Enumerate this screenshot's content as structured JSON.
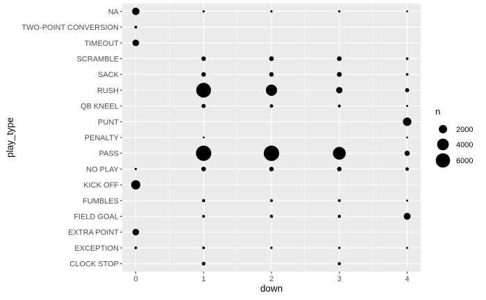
{
  "chart_data": {
    "type": "scatter",
    "xlabel": "down",
    "ylabel": "play_type",
    "x_ticks": [
      "0",
      "1",
      "2",
      "3",
      "4"
    ],
    "xlim": [
      -0.2,
      4.2
    ],
    "categories": [
      "CLOCK STOP",
      "EXCEPTION",
      "EXTRA POINT",
      "FIELD GOAL",
      "FUMBLES",
      "KICK OFF",
      "NO PLAY",
      "PASS",
      "PENALTY",
      "PUNT",
      "QB KNEEL",
      "RUSH",
      "SACK",
      "SCRAMBLE",
      "TIMEOUT",
      "TWO-POINT CONVERSION",
      "NA"
    ],
    "size_variable": "n",
    "legend": {
      "title": "n",
      "position": "right",
      "entries": [
        {
          "label": "2000",
          "value": 2000
        },
        {
          "label": "4000",
          "value": 4000
        },
        {
          "label": "6000",
          "value": 6000
        }
      ]
    },
    "size_range_max": 7500,
    "points": [
      {
        "play_type": "NA",
        "down": 0,
        "n": 1600
      },
      {
        "play_type": "NA",
        "down": 1,
        "n": 150
      },
      {
        "play_type": "NA",
        "down": 2,
        "n": 150
      },
      {
        "play_type": "NA",
        "down": 3,
        "n": 150
      },
      {
        "play_type": "NA",
        "down": 4,
        "n": 100
      },
      {
        "play_type": "TWO-POINT CONVERSION",
        "down": 0,
        "n": 250
      },
      {
        "play_type": "TIMEOUT",
        "down": 0,
        "n": 1300
      },
      {
        "play_type": "SCRAMBLE",
        "down": 1,
        "n": 600
      },
      {
        "play_type": "SCRAMBLE",
        "down": 2,
        "n": 650
      },
      {
        "play_type": "SCRAMBLE",
        "down": 3,
        "n": 650
      },
      {
        "play_type": "SCRAMBLE",
        "down": 4,
        "n": 200
      },
      {
        "play_type": "SACK",
        "down": 1,
        "n": 600
      },
      {
        "play_type": "SACK",
        "down": 2,
        "n": 600
      },
      {
        "play_type": "SACK",
        "down": 3,
        "n": 700
      },
      {
        "play_type": "SACK",
        "down": 4,
        "n": 200
      },
      {
        "play_type": "RUSH",
        "down": 1,
        "n": 6400
      },
      {
        "play_type": "RUSH",
        "down": 2,
        "n": 3700
      },
      {
        "play_type": "RUSH",
        "down": 3,
        "n": 1200
      },
      {
        "play_type": "RUSH",
        "down": 4,
        "n": 500
      },
      {
        "play_type": "QB KNEEL",
        "down": 1,
        "n": 500
      },
      {
        "play_type": "QB KNEEL",
        "down": 2,
        "n": 350
      },
      {
        "play_type": "QB KNEEL",
        "down": 3,
        "n": 250
      },
      {
        "play_type": "QB KNEEL",
        "down": 4,
        "n": 120
      },
      {
        "play_type": "PUNT",
        "down": 4,
        "n": 2100
      },
      {
        "play_type": "PENALTY",
        "down": 1,
        "n": 100
      },
      {
        "play_type": "PENALTY",
        "down": 4,
        "n": 100
      },
      {
        "play_type": "PASS",
        "down": 1,
        "n": 6900
      },
      {
        "play_type": "PASS",
        "down": 2,
        "n": 7000
      },
      {
        "play_type": "PASS",
        "down": 3,
        "n": 4800
      },
      {
        "play_type": "PASS",
        "down": 4,
        "n": 800
      },
      {
        "play_type": "NO PLAY",
        "down": 0,
        "n": 150
      },
      {
        "play_type": "NO PLAY",
        "down": 1,
        "n": 650
      },
      {
        "play_type": "NO PLAY",
        "down": 2,
        "n": 600
      },
      {
        "play_type": "NO PLAY",
        "down": 3,
        "n": 600
      },
      {
        "play_type": "NO PLAY",
        "down": 4,
        "n": 350
      },
      {
        "play_type": "KICK OFF",
        "down": 0,
        "n": 2500
      },
      {
        "play_type": "FUMBLES",
        "down": 1,
        "n": 300
      },
      {
        "play_type": "FUMBLES",
        "down": 2,
        "n": 250
      },
      {
        "play_type": "FUMBLES",
        "down": 3,
        "n": 250
      },
      {
        "play_type": "FUMBLES",
        "down": 4,
        "n": 120
      },
      {
        "play_type": "FIELD GOAL",
        "down": 1,
        "n": 250
      },
      {
        "play_type": "FIELD GOAL",
        "down": 2,
        "n": 300
      },
      {
        "play_type": "FIELD GOAL",
        "down": 3,
        "n": 300
      },
      {
        "play_type": "FIELD GOAL",
        "down": 4,
        "n": 1400
      },
      {
        "play_type": "EXTRA POINT",
        "down": 0,
        "n": 1300
      },
      {
        "play_type": "EXCEPTION",
        "down": 0,
        "n": 200
      },
      {
        "play_type": "EXCEPTION",
        "down": 1,
        "n": 200
      },
      {
        "play_type": "EXCEPTION",
        "down": 2,
        "n": 150
      },
      {
        "play_type": "EXCEPTION",
        "down": 3,
        "n": 150
      },
      {
        "play_type": "EXCEPTION",
        "down": 4,
        "n": 120
      },
      {
        "play_type": "CLOCK STOP",
        "down": 1,
        "n": 400
      },
      {
        "play_type": "CLOCK STOP",
        "down": 3,
        "n": 300
      }
    ],
    "colors": {
      "panel": "#ebebeb",
      "grid_major": "#ffffff",
      "point": "#000000",
      "tick_text": "#4d4d4d",
      "tick_mark": "#333333"
    }
  }
}
